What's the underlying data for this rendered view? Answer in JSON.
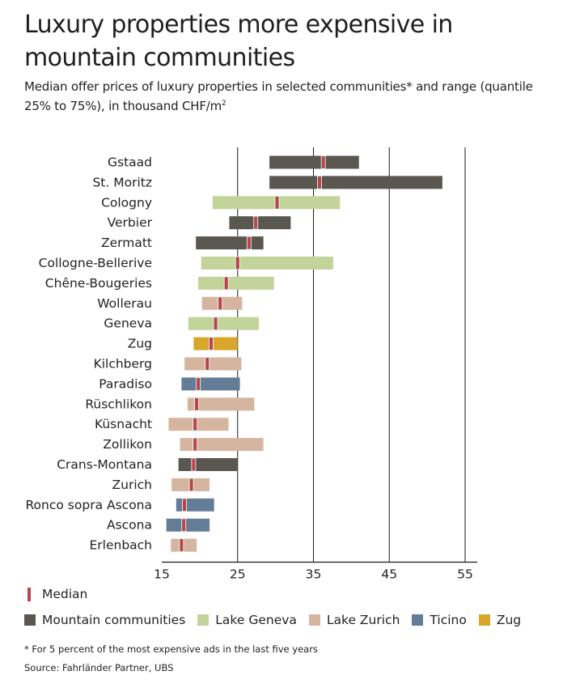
{
  "title": "Luxury properties more expensive in mountain communities",
  "subtitle": "Median offer prices of luxury properties in selected communities* and range (quantile 25% to 75%), in thousand CHF/m",
  "subtitle_superscript": "2",
  "legend": {
    "median_label": "Median",
    "median_color": "#b5474b",
    "groups": [
      {
        "label": "Mountain communities",
        "color": "#5a5650"
      },
      {
        "label": "Lake Geneva",
        "color": "#c2d49a"
      },
      {
        "label": "Lake Zurich",
        "color": "#d6b5a0"
      },
      {
        "label": "Ticino",
        "color": "#647d96"
      },
      {
        "label": "Zug",
        "color": "#d8a62a"
      }
    ]
  },
  "footnote": "* For 5 percent of the most expensive ads in the last five years",
  "source": "Source: Fahrländer Partner, UBS",
  "chart_data": {
    "type": "range-bar",
    "orientation": "horizontal",
    "x_ticks": [
      15,
      25,
      35,
      45,
      55
    ],
    "xlim": [
      15,
      55
    ],
    "grid": "vertical lines at 25, 35, 45, 55",
    "rows": [
      {
        "name": "Gstaad",
        "group": "Mountain communities",
        "q25": 29.2,
        "q75": 41.0,
        "median": 36.3
      },
      {
        "name": "St. Moritz",
        "group": "Mountain communities",
        "q25": 29.2,
        "q75": 52.0,
        "median": 35.8
      },
      {
        "name": "Cologny",
        "group": "Lake Geneva",
        "q25": 21.7,
        "q75": 38.5,
        "median": 30.2
      },
      {
        "name": "Verbier",
        "group": "Mountain communities",
        "q25": 23.9,
        "q75": 32.0,
        "median": 27.4
      },
      {
        "name": "Zermatt",
        "group": "Mountain communities",
        "q25": 19.5,
        "q75": 28.4,
        "median": 26.5
      },
      {
        "name": "Collogne-Bellerive",
        "group": "Lake Geneva",
        "q25": 20.2,
        "q75": 37.6,
        "median": 25.0
      },
      {
        "name": "Chêne-Bougeries",
        "group": "Lake Geneva",
        "q25": 19.8,
        "q75": 29.8,
        "median": 23.5
      },
      {
        "name": "Wollerau",
        "group": "Lake Zurich",
        "q25": 20.3,
        "q75": 25.6,
        "median": 22.7
      },
      {
        "name": "Geneva",
        "group": "Lake Geneva",
        "q25": 18.5,
        "q75": 27.8,
        "median": 22.1
      },
      {
        "name": "Zug",
        "group": "Zug",
        "q25": 19.2,
        "q75": 25.0,
        "median": 21.5
      },
      {
        "name": "Kilchberg",
        "group": "Lake Zurich",
        "q25": 18.0,
        "q75": 25.5,
        "median": 21.0
      },
      {
        "name": "Paradiso",
        "group": "Ticino",
        "q25": 17.6,
        "q75": 25.3,
        "median": 19.8
      },
      {
        "name": "Rüschlikon",
        "group": "Lake Zurich",
        "q25": 18.4,
        "q75": 27.2,
        "median": 19.6
      },
      {
        "name": "Küsnacht",
        "group": "Lake Zurich",
        "q25": 15.9,
        "q75": 23.8,
        "median": 19.4
      },
      {
        "name": "Zollikon",
        "group": "Lake Zurich",
        "q25": 17.4,
        "q75": 28.4,
        "median": 19.4
      },
      {
        "name": "Crans-Montana",
        "group": "Mountain communities",
        "q25": 17.2,
        "q75": 25.0,
        "median": 19.2
      },
      {
        "name": "Zurich",
        "group": "Lake Zurich",
        "q25": 16.3,
        "q75": 21.3,
        "median": 18.9
      },
      {
        "name": "Ronco sopra Ascona",
        "group": "Ticino",
        "q25": 16.9,
        "q75": 21.9,
        "median": 18.0
      },
      {
        "name": "Ascona",
        "group": "Ticino",
        "q25": 15.6,
        "q75": 21.3,
        "median": 17.9
      },
      {
        "name": "Erlenbach",
        "group": "Lake Zurich",
        "q25": 16.2,
        "q75": 19.6,
        "median": 17.6
      }
    ]
  }
}
